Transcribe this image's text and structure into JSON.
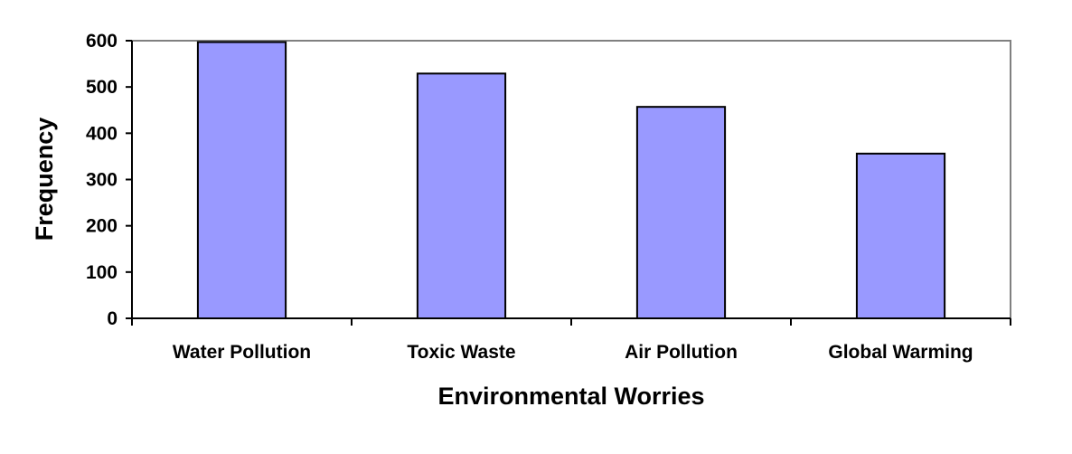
{
  "chart_data": {
    "type": "bar",
    "title": "",
    "xlabel": "Environmental Worries",
    "ylabel": "Frequency",
    "categories": [
      "Water Pollution",
      "Toxic Waste",
      "Air Pollution",
      "Global Warming"
    ],
    "values": [
      597,
      529,
      457,
      356
    ],
    "ylim": [
      0,
      600
    ],
    "yticks": [
      0,
      100,
      200,
      300,
      400,
      500,
      600
    ],
    "ytick_labels": [
      "0",
      "100",
      "200",
      "300",
      "400",
      "500",
      "600"
    ],
    "grid": false,
    "legend": "none"
  },
  "colors": {
    "bar_fill": "#9999ff",
    "bar_stroke": "#000000",
    "axis": "#000000",
    "plot_border": "#808080",
    "background": "#ffffff"
  }
}
